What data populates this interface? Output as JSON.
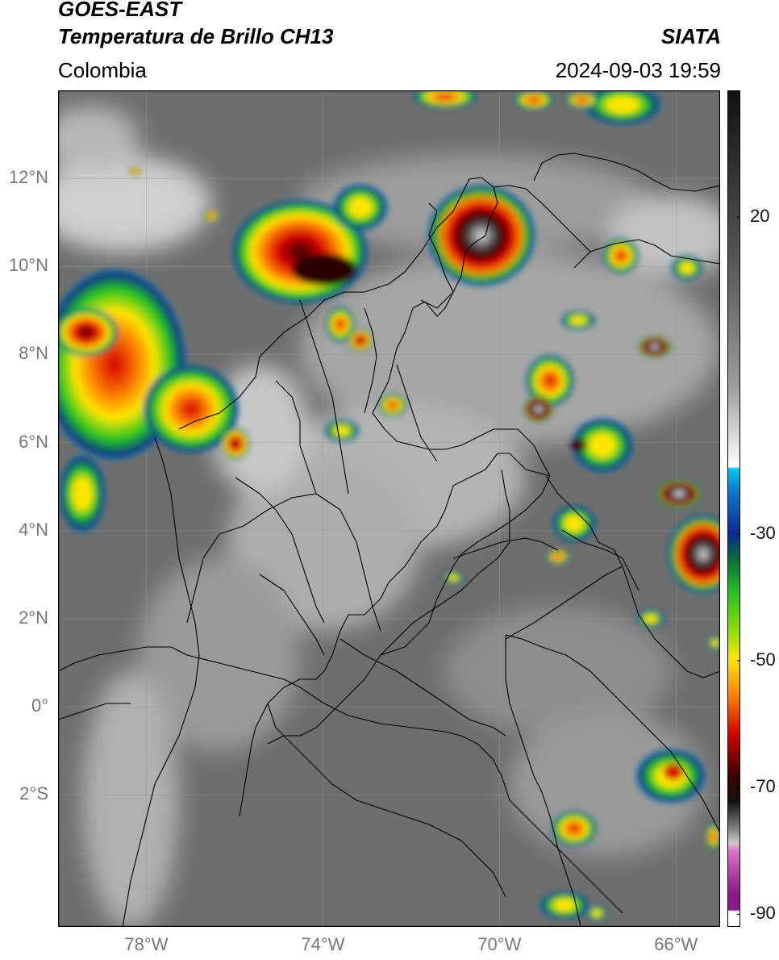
{
  "header": {
    "satellite": "GOES-EAST",
    "product": "Temperatura de Brillo CH13",
    "brand": "SIATA",
    "region": "Colombia",
    "datetime": "2024-09-03 19:59"
  },
  "map": {
    "lat_ticks": [
      {
        "value": 12,
        "label": "12°N"
      },
      {
        "value": 10,
        "label": "10°N"
      },
      {
        "value": 8,
        "label": "8°N"
      },
      {
        "value": 6,
        "label": "6°N"
      },
      {
        "value": 4,
        "label": "4°N"
      },
      {
        "value": 2,
        "label": "2°N"
      },
      {
        "value": 0,
        "label": "0°"
      },
      {
        "value": -2,
        "label": "2°S"
      }
    ],
    "lon_ticks": [
      {
        "value": -78,
        "label": "78°W"
      },
      {
        "value": -74,
        "label": "74°W"
      },
      {
        "value": -70,
        "label": "70°W"
      },
      {
        "value": -66,
        "label": "66°W"
      }
    ],
    "extent": {
      "lon_min": -80,
      "lon_max": -65,
      "lat_min": -5,
      "lat_max": 14
    }
  },
  "colorbar": {
    "ticks": [
      {
        "value": 20,
        "label": "20"
      },
      {
        "value": -30,
        "label": "-30"
      },
      {
        "value": -50,
        "label": "-50"
      },
      {
        "value": -70,
        "label": "-70"
      },
      {
        "value": -90,
        "label": "-90"
      }
    ],
    "range": [
      -92,
      40
    ],
    "colors": {
      "warm_top": "#111111",
      "warm_mid": "#888888",
      "warm_low": "#ffffff",
      "cyan": "#00c8f0",
      "blue": "#0a2a90",
      "green": "#22c322",
      "yellow": "#ffe600",
      "orange": "#ff8a00",
      "red": "#d40000",
      "darkred": "#3a0000",
      "pink": "#e070c8",
      "purple": "#8a1a8a"
    }
  }
}
